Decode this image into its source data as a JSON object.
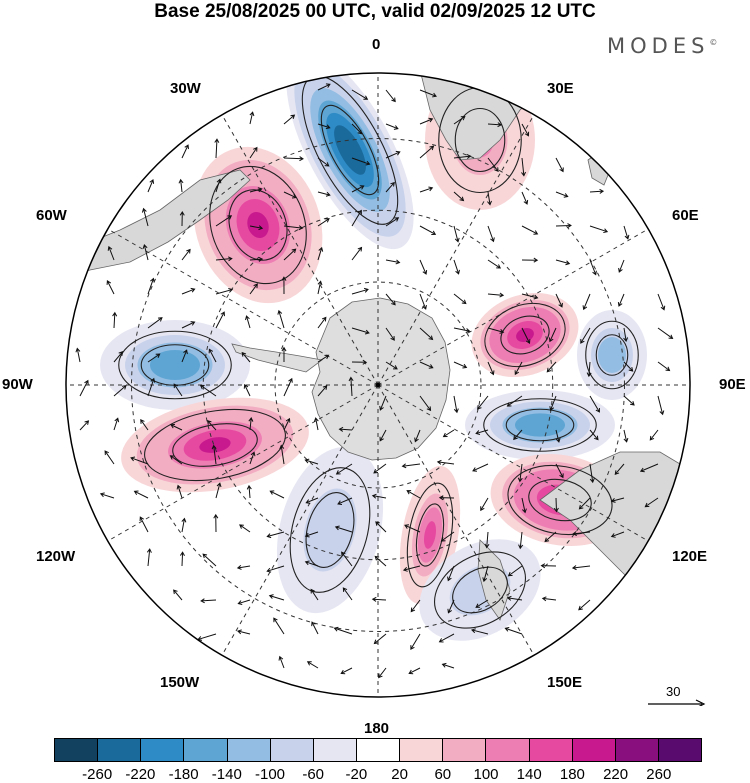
{
  "title": "Base 25/08/2025 00 UTC, valid 02/09/2025 12 UTC",
  "brand": "MODES",
  "brand_mark": "©",
  "longitude_labels": {
    "n0": "0",
    "e30": "30E",
    "e60": "60E",
    "e90": "90E",
    "e120": "120E",
    "e150": "150E",
    "s180": "180",
    "w150": "150W",
    "w120": "120W",
    "w90": "90W",
    "w60": "60W",
    "w30": "30W"
  },
  "reference_vector": {
    "label": "30"
  },
  "colorbar": {
    "ticks": [
      "-260",
      "-220",
      "-180",
      "-140",
      "-100",
      "-60",
      "-20",
      "20",
      "60",
      "100",
      "140",
      "180",
      "220",
      "260"
    ],
    "colors": [
      "#12405f",
      "#1a6a9c",
      "#2f8bc6",
      "#5ea5d4",
      "#93bde2",
      "#c8d2eb",
      "#e6e6f3",
      "#ffffff",
      "#f8d6d8",
      "#f3adc3",
      "#ed7eb3",
      "#e64aa0",
      "#c81a8e",
      "#8a0f7e",
      "#5a0c6e"
    ]
  },
  "colors": {
    "land": "#d8d8d8",
    "frame": "#000000"
  },
  "anomalies": [
    {
      "name": "atlantic-negative",
      "value": -260
    },
    {
      "name": "southwest-atlantic-positive",
      "value": 180
    },
    {
      "name": "south-africa-positive",
      "value": 100
    },
    {
      "name": "indian-ocean-positive",
      "value": 200
    },
    {
      "name": "indian-ocean-east-negative",
      "value": -140
    },
    {
      "name": "south-indian-negative",
      "value": -180
    },
    {
      "name": "australia-south-positive",
      "value": 200
    },
    {
      "name": "southeast-pacific-negative",
      "value": -180
    },
    {
      "name": "southeast-pacific-positive",
      "value": 180
    },
    {
      "name": "ross-sea-positive",
      "value": 140
    },
    {
      "name": "new-zealand-negative",
      "value": -100
    },
    {
      "name": "south-pacific-negative",
      "value": -100
    }
  ]
}
